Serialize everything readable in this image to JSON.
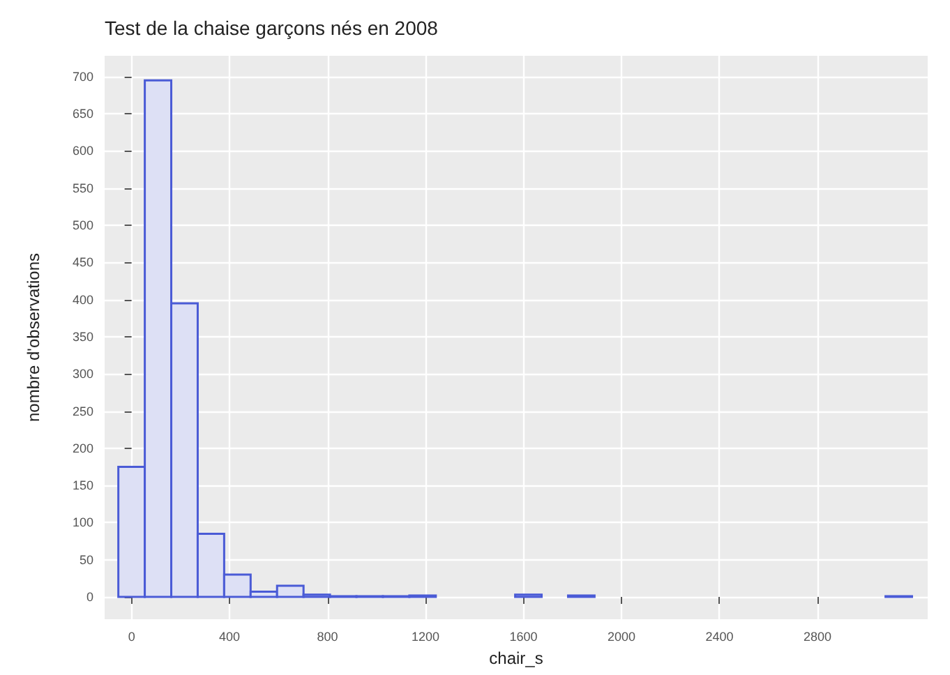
{
  "chart_data": {
    "type": "histogram",
    "title": "Test de la chaise garçons nés en 2008",
    "xlabel": "chair_s",
    "ylabel": "nombre d'observations",
    "bins": [
      -54,
      54,
      162,
      270,
      378,
      486,
      594,
      702,
      810,
      918,
      1026,
      1134,
      1242,
      1350,
      1458,
      1566,
      1674,
      1782,
      1890,
      1998,
      2106,
      2214,
      2322,
      2430,
      2538,
      2646,
      2754,
      2862,
      2970,
      3078,
      3186
    ],
    "values": [
      175,
      695,
      395,
      85,
      30,
      7,
      15,
      3,
      1,
      1,
      1,
      2,
      0,
      0,
      0,
      3,
      0,
      2,
      0,
      0,
      0,
      0,
      0,
      0,
      0,
      0,
      0,
      0,
      0,
      1
    ],
    "color": "#dde0f5",
    "xlim": [
      -110,
      3250
    ],
    "xticks": [
      0,
      400,
      800,
      1200,
      1600,
      2000,
      2400,
      2800
    ],
    "ylim": [
      -30,
      728
    ],
    "yticks": [
      0,
      50,
      100,
      150,
      200,
      250,
      300,
      350,
      400,
      450,
      500,
      550,
      600,
      650,
      700
    ],
    "grid": true
  }
}
